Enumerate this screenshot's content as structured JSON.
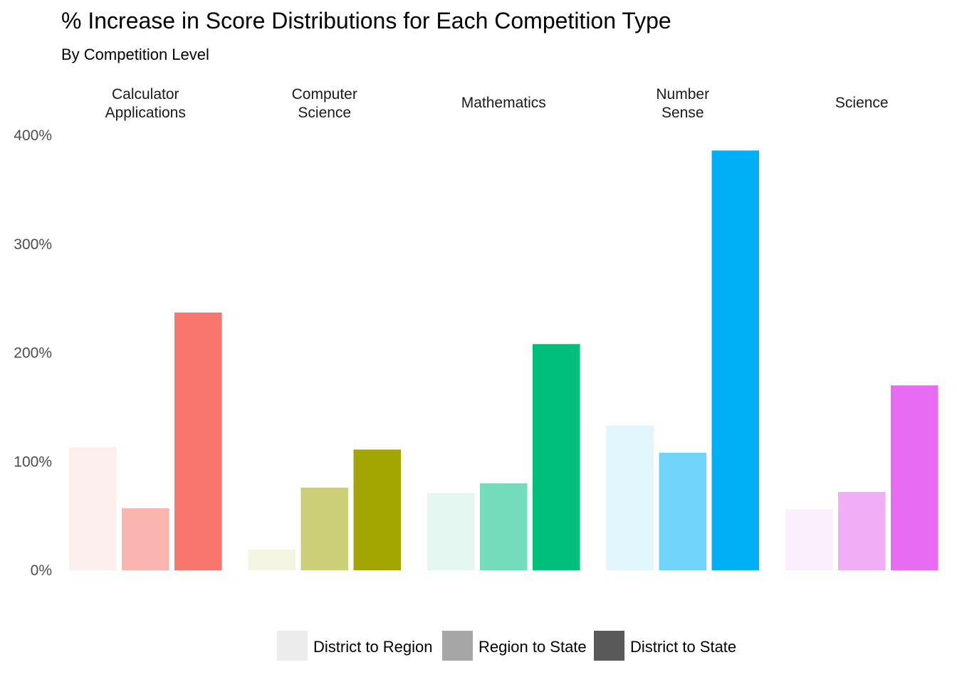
{
  "chart_data": {
    "type": "bar",
    "title": "% Increase in Score Distributions for Each Competition Type",
    "subtitle": "By Competition Level",
    "xlabel": "",
    "ylabel": "",
    "ylim": [
      0,
      400
    ],
    "y_ticks": [
      0,
      100,
      200,
      300,
      400
    ],
    "y_tick_labels": [
      "0%",
      "100%",
      "200%",
      "300%",
      "400%"
    ],
    "grid": false,
    "legend_position": "bottom",
    "legend": {
      "entries": [
        {
          "label": "District to Region",
          "color": "#ececec"
        },
        {
          "label": "Region to State",
          "color": "#a6a6a6"
        },
        {
          "label": "District to State",
          "color": "#595959"
        }
      ]
    },
    "facets": [
      {
        "label": "Calculator\nApplications"
      },
      {
        "label": "Computer\nScience"
      },
      {
        "label": "Mathematics"
      },
      {
        "label": "Number\nSense"
      },
      {
        "label": "Science"
      }
    ],
    "series": [
      {
        "name": "District to Region",
        "values": [
          113,
          19,
          71,
          133,
          56
        ]
      },
      {
        "name": "Region to State",
        "values": [
          57,
          76,
          80,
          108,
          72
        ]
      },
      {
        "name": "District to State",
        "values": [
          237,
          111,
          208,
          386,
          170
        ]
      }
    ],
    "colors": [
      [
        "#fdefed",
        "#fab5b0",
        "#f8766d"
      ],
      [
        "#f4f5e2",
        "#cccd77",
        "#a3a500"
      ],
      [
        "#e3f6ef",
        "#73dcba",
        "#00bf7d"
      ],
      [
        "#e1f5fd",
        "#70d3f9",
        "#00b0f6"
      ],
      [
        "#fbeefd",
        "#f1aef7",
        "#e76bf3"
      ]
    ]
  }
}
